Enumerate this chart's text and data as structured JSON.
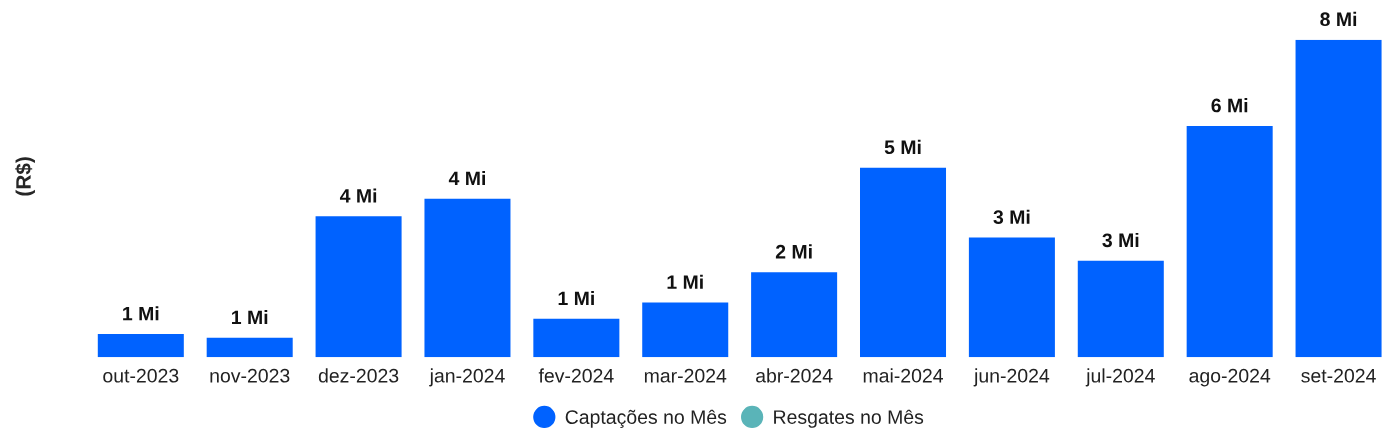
{
  "chart_data": {
    "type": "bar",
    "ylabel": "(R$)",
    "categories": [
      "out-2023",
      "nov-2023",
      "dez-2023",
      "jan-2024",
      "fev-2024",
      "mar-2024",
      "abr-2024",
      "mai-2024",
      "jun-2024",
      "jul-2024",
      "ago-2024",
      "set-2024"
    ],
    "series": [
      {
        "name": "Captações no Mês",
        "color": "#0062ff",
        "values": [
          0.61,
          0.51,
          3.71,
          4.17,
          1.01,
          1.44,
          2.24,
          4.99,
          3.15,
          2.54,
          6.09,
          8.36
        ],
        "value_labels": [
          "1 Mi",
          "1 Mi",
          "4 Mi",
          "4 Mi",
          "1 Mi",
          "1 Mi",
          "2 Mi",
          "5 Mi",
          "3 Mi",
          "3 Mi",
          "6 Mi",
          "8 Mi"
        ]
      },
      {
        "name": "Resgates no Mês",
        "color": "#5ab4b8",
        "values": [
          null,
          null,
          null,
          null,
          null,
          null,
          null,
          null,
          null,
          null,
          null,
          null
        ]
      }
    ],
    "legend": "bottom",
    "grid": false
  }
}
